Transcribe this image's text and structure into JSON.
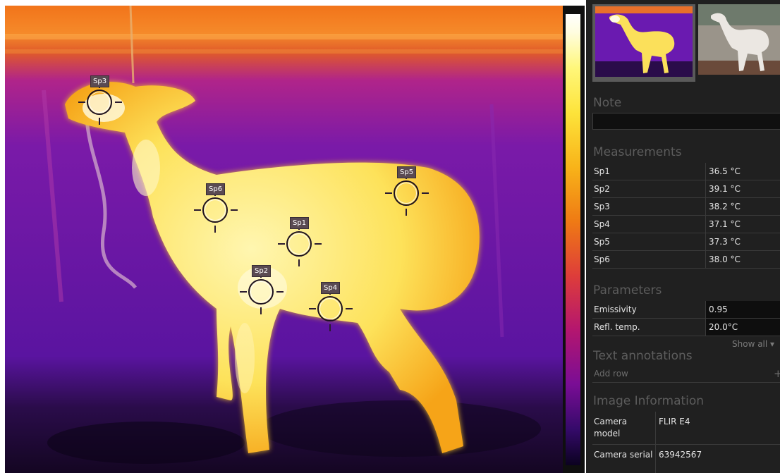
{
  "thermal_image": {
    "spots": [
      {
        "label": "Sp1"
      },
      {
        "label": "Sp2"
      },
      {
        "label": "Sp3"
      },
      {
        "label": "Sp4"
      },
      {
        "label": "Sp5"
      },
      {
        "label": "Sp6"
      }
    ]
  },
  "panel": {
    "note": {
      "title": "Note",
      "value": ""
    },
    "measurements": {
      "title": "Measurements",
      "rows": [
        {
          "name": "Sp1",
          "value": "36.5 °C"
        },
        {
          "name": "Sp2",
          "value": "39.1 °C"
        },
        {
          "name": "Sp3",
          "value": "38.2 °C"
        },
        {
          "name": "Sp4",
          "value": "37.1 °C"
        },
        {
          "name": "Sp5",
          "value": "37.3 °C"
        },
        {
          "name": "Sp6",
          "value": "38.0 °C"
        }
      ]
    },
    "parameters": {
      "title": "Parameters",
      "rows": [
        {
          "name": "Emissivity",
          "value": "0.95"
        },
        {
          "name": "Refl. temp.",
          "value": "20.0°C"
        }
      ],
      "show_all": "Show all ▾"
    },
    "text_annotations": {
      "title": "Text annotations",
      "add_row": "Add row",
      "add_icon": "+"
    },
    "image_information": {
      "title": "Image Information",
      "rows": [
        {
          "name": "Camera model",
          "value": "FLIR E4"
        },
        {
          "name": "Camera serial",
          "value": "63942567"
        }
      ]
    }
  },
  "colors": {
    "panel_bg": "#202020",
    "section_title": "#5c5c5c",
    "spot_tag_bg": "#5a4a52",
    "ir_background": "#5e17a8",
    "ir_body": "#fbe76b",
    "ir_hot": "#fffbe3"
  }
}
